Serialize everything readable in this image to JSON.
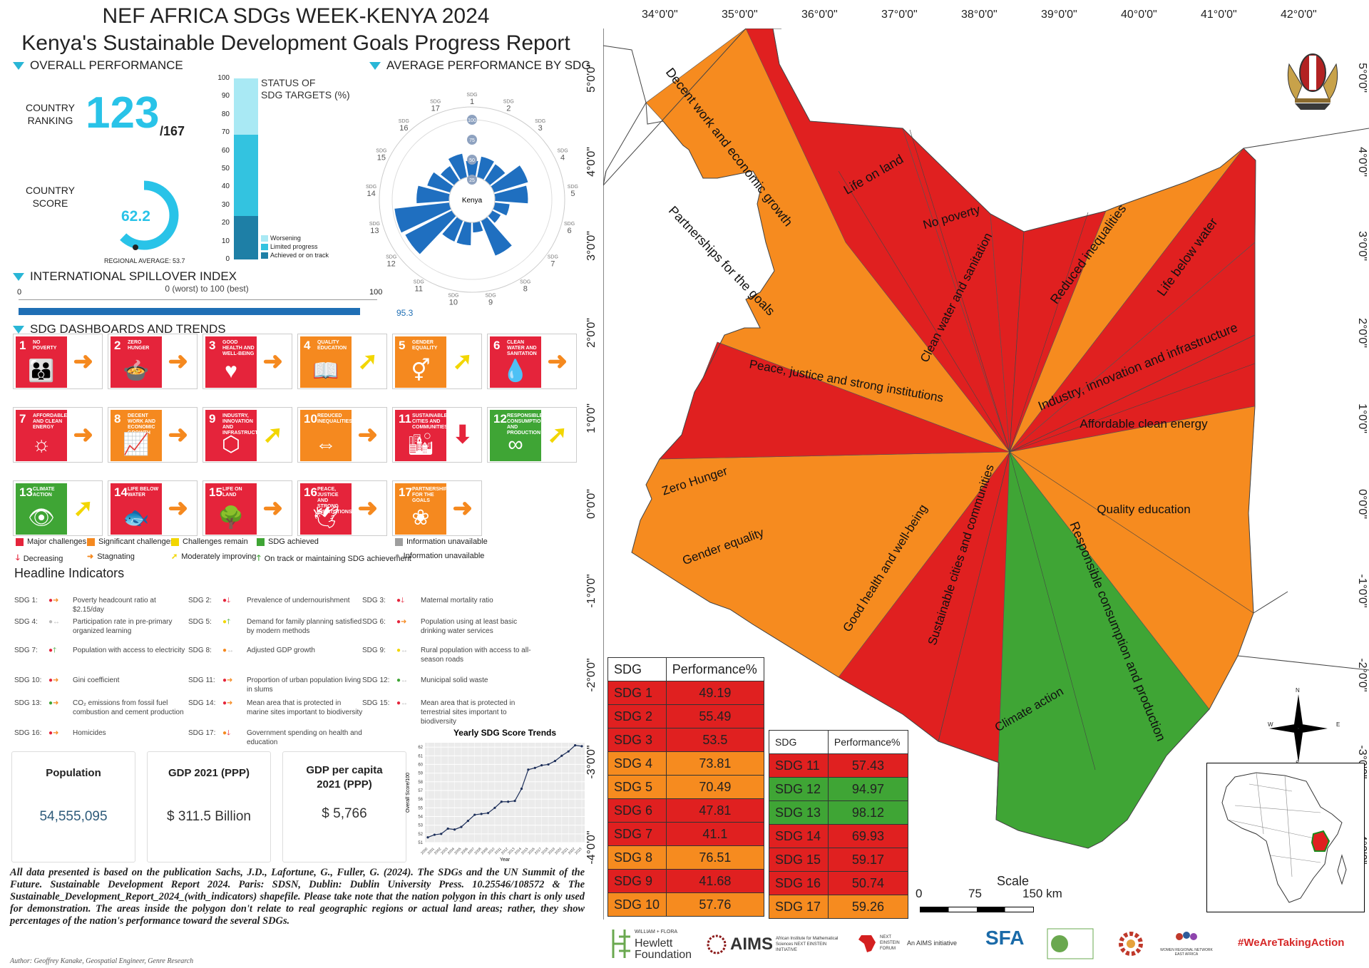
{
  "header": {
    "title1": "NEF AFRICA SDGs WEEK-KENYA 2024",
    "title2": "Kenya's Sustainable Development Goals Progress Report"
  },
  "overall": {
    "heading": "OVERALL PERFORMANCE",
    "ranking_label1": "COUNTRY",
    "ranking_label2": "RANKING",
    "rank": "123",
    "rank_total": "/167",
    "score_label1": "COUNTRY",
    "score_label2": "SCORE",
    "score": "62.2",
    "score_value": 62.2,
    "regional": "REGIONAL AVERAGE: 53.7"
  },
  "status": {
    "title1": "STATUS OF",
    "title2": "SDG TARGETS (%)",
    "ticks": [
      "0",
      "10",
      "20",
      "30",
      "40",
      "50",
      "60",
      "70",
      "80",
      "90",
      "100"
    ],
    "segments": [
      {
        "name": "Achieved or on track",
        "value": 24,
        "color": "#1e7fa6"
      },
      {
        "name": "Limited progress",
        "value": 45,
        "color": "#33c3e0"
      },
      {
        "name": "Worsening",
        "value": 31,
        "color": "#a9e9f4"
      }
    ],
    "legend": [
      "Worsening",
      "Limited progress",
      "Achieved or on track"
    ]
  },
  "radar": {
    "heading": "AVERAGE PERFORMANCE BY SDG",
    "center": "Kenya",
    "rings": [
      "25",
      "50",
      "75",
      "100"
    ],
    "sdg_label": "SDG",
    "values": [
      49.19,
      55.49,
      53.5,
      73.81,
      70.49,
      47.81,
      41.1,
      76.51,
      41.68,
      57.76,
      57.43,
      94.97,
      98.12,
      69.93,
      59.17,
      50.74,
      59.26
    ]
  },
  "spillover": {
    "heading": "INTERNATIONAL SPILLOVER INDEX",
    "min": "0",
    "max": "100",
    "scale_label": "0 (worst) to 100 (best)",
    "value": 95.3,
    "value_label": "95.3"
  },
  "dashboards": {
    "heading": "SDG DASHBOARDS AND TRENDS",
    "tiles": [
      {
        "num": "1",
        "name": "No poverty",
        "color": "#e5243b",
        "glyph": "👪",
        "arrow": "➜",
        "arrow_color": "#f5891f"
      },
      {
        "num": "2",
        "name": "Zero hunger",
        "color": "#e5243b",
        "glyph": "🍲",
        "arrow": "➜",
        "arrow_color": "#f5891f"
      },
      {
        "num": "3",
        "name": "Good health and well-being",
        "color": "#e5243b",
        "glyph": "♥",
        "arrow": "➜",
        "arrow_color": "#f5891f"
      },
      {
        "num": "4",
        "name": "Quality education",
        "color": "#f5891f",
        "glyph": "📖",
        "arrow": "➚",
        "arrow_color": "#f2d600"
      },
      {
        "num": "5",
        "name": "Gender equality",
        "color": "#f5891f",
        "glyph": "⚥",
        "arrow": "➚",
        "arrow_color": "#f2d600"
      },
      {
        "num": "6",
        "name": "Clean water and sanitation",
        "color": "#e5243b",
        "glyph": "💧",
        "arrow": "➜",
        "arrow_color": "#f5891f"
      },
      {
        "num": "7",
        "name": "Affordable and clean energy",
        "color": "#e5243b",
        "glyph": "☼",
        "arrow": "➜",
        "arrow_color": "#f5891f"
      },
      {
        "num": "8",
        "name": "Decent work and economic growth",
        "color": "#f5891f",
        "glyph": "📈",
        "arrow": "➜",
        "arrow_color": "#f5891f"
      },
      {
        "num": "9",
        "name": "Industry, innovation and infrastructure",
        "color": "#e5243b",
        "glyph": "⬡",
        "arrow": "➚",
        "arrow_color": "#f2d600"
      },
      {
        "num": "10",
        "name": "Reduced inequalities",
        "color": "#f5891f",
        "glyph": "⇔",
        "arrow": "➜",
        "arrow_color": "#f5891f"
      },
      {
        "num": "11",
        "name": "Sustainable cities and communities",
        "color": "#e5243b",
        "glyph": "🏙",
        "arrow": "⬇",
        "arrow_color": "#e5243b"
      },
      {
        "num": "12",
        "name": "Responsible consumption and production",
        "color": "#3fa535",
        "glyph": "∞",
        "arrow": "➚",
        "arrow_color": "#f2d600"
      },
      {
        "num": "13",
        "name": "Climate action",
        "color": "#3fa535",
        "glyph": "👁",
        "arrow": "➚",
        "arrow_color": "#f2d600"
      },
      {
        "num": "14",
        "name": "Life below water",
        "color": "#e5243b",
        "glyph": "🐟",
        "arrow": "➜",
        "arrow_color": "#f5891f"
      },
      {
        "num": "15",
        "name": "Life on land",
        "color": "#e5243b",
        "glyph": "🌳",
        "arrow": "➜",
        "arrow_color": "#f5891f"
      },
      {
        "num": "16",
        "name": "Peace, justice and strong institutions",
        "color": "#e5243b",
        "glyph": "🕊",
        "arrow": "➜",
        "arrow_color": "#f5891f"
      },
      {
        "num": "17",
        "name": "Partnerships for the goals",
        "color": "#f5891f",
        "glyph": "❀",
        "arrow": "➜",
        "arrow_color": "#f5891f"
      }
    ],
    "legend_row1": [
      {
        "t": "Major challenges",
        "c": "#e5243b"
      },
      {
        "t": "Significant challenges",
        "c": "#f5891f"
      },
      {
        "t": "Challenges remain",
        "c": "#f2d600"
      },
      {
        "t": "SDG achieved",
        "c": "#3fa535"
      },
      {
        "t": "Information unavailable",
        "c": "#9e9e9e"
      }
    ],
    "legend_row2": [
      {
        "t": "Decreasing",
        "s": "🡓",
        "c": "#e5243b"
      },
      {
        "t": "Stagnating",
        "s": "➜",
        "c": "#f5891f"
      },
      {
        "t": "Moderately improving",
        "s": "➚",
        "c": "#f2d600"
      },
      {
        "t": "On track or maintaining SDG achievement",
        "s": "🡑",
        "c": "#3fa535"
      },
      {
        "t": "Information unavailable",
        "s": "●",
        "c": "#9e9e9e"
      }
    ]
  },
  "headline": {
    "heading": "Headline Indicators",
    "items": [
      {
        "sdg": "SDG 1:",
        "dot": "#e5243b",
        "arr": "➜",
        "ac": "#f5891f",
        "text": "Poverty headcount ratio at $2.15/day"
      },
      {
        "sdg": "SDG 2:",
        "dot": "#e5243b",
        "arr": "🡓",
        "ac": "#e5243b",
        "text": "Prevalence of undernourishment"
      },
      {
        "sdg": "SDG 3:",
        "dot": "#e5243b",
        "arr": "🡓",
        "ac": "#e5243b",
        "text": "Maternal mortality ratio"
      },
      {
        "sdg": "SDG 4:",
        "dot": "#bbbbbb",
        "arr": "↔",
        "ac": "#bbbbbb",
        "text": "Participation rate in pre-primary organized learning"
      },
      {
        "sdg": "SDG 5:",
        "dot": "#f2d600",
        "arr": "🡑",
        "ac": "#3fa535",
        "text": "Demand for family planning satisfied by modern methods"
      },
      {
        "sdg": "SDG 6:",
        "dot": "#e5243b",
        "arr": "➜",
        "ac": "#f5891f",
        "text": "Population using at least basic drinking water services"
      },
      {
        "sdg": "SDG 7:",
        "dot": "#e5243b",
        "arr": "🡑",
        "ac": "#3fa535",
        "text": "Population with access to electricity"
      },
      {
        "sdg": "SDG 8:",
        "dot": "#f5891f",
        "arr": "↔",
        "ac": "#bbbbbb",
        "text": "Adjusted GDP growth"
      },
      {
        "sdg": "SDG 9:",
        "dot": "#f2d600",
        "arr": "↔",
        "ac": "#bbbbbb",
        "text": "Rural population with access to all-season roads"
      },
      {
        "sdg": "SDG 10:",
        "dot": "#e5243b",
        "arr": "➜",
        "ac": "#f5891f",
        "text": "Gini coefficient"
      },
      {
        "sdg": "SDG 11:",
        "dot": "#e5243b",
        "arr": "➜",
        "ac": "#f5891f",
        "text": "Proportion of urban population living in slums"
      },
      {
        "sdg": "SDG 12:",
        "dot": "#3fa535",
        "arr": "↔",
        "ac": "#bbbbbb",
        "text": "Municipal solid waste"
      },
      {
        "sdg": "SDG 13:",
        "dot": "#3fa535",
        "arr": "➜",
        "ac": "#f5891f",
        "text": "CO₂ emissions from fossil fuel combustion and cement production"
      },
      {
        "sdg": "SDG 14:",
        "dot": "#e5243b",
        "arr": "➜",
        "ac": "#f5891f",
        "text": "Mean area that is protected in marine sites important to biodiversity"
      },
      {
        "sdg": "SDG 15:",
        "dot": "#e5243b",
        "arr": "↔",
        "ac": "#bbbbbb",
        "text": "Mean area that is protected in terrestrial sites important to biodiversity"
      },
      {
        "sdg": "SDG 16:",
        "dot": "#e5243b",
        "arr": "➜",
        "ac": "#f5891f",
        "text": "Homicides"
      },
      {
        "sdg": "SDG 17:",
        "dot": "#f5891f",
        "arr": "🡓",
        "ac": "#e5243b",
        "text": "Government spending on health and education"
      }
    ]
  },
  "cards": [
    {
      "head": "Population",
      "value": "54,555,095",
      "color": "#2e5b7a"
    },
    {
      "head": "GDP 2021 (PPP)",
      "value": "$ 311.5 Billion",
      "color": "#333"
    },
    {
      "head": "GDP per capita 2021 (PPP)",
      "value": "$ 5,766",
      "color": "#333"
    }
  ],
  "chart_data": {
    "type": "line",
    "title": "Yearly SDG Score Trends",
    "xlabel": "Year",
    "ylabel": "Overall Score/100",
    "x": [
      2000,
      2001,
      2002,
      2003,
      2004,
      2005,
      2006,
      2007,
      2008,
      2009,
      2010,
      2011,
      2012,
      2013,
      2014,
      2015,
      2016,
      2017,
      2018,
      2019,
      2020,
      2021,
      2022,
      2023
    ],
    "values": [
      51.6,
      51.9,
      52.0,
      52.6,
      52.5,
      52.8,
      53.5,
      54.2,
      54.3,
      54.4,
      55.0,
      55.7,
      55.7,
      55.8,
      57.2,
      59.4,
      59.6,
      59.9,
      60.0,
      60.4,
      61.0,
      61.5,
      62.2,
      62.1
    ],
    "ylim": [
      51,
      62.5
    ],
    "yticks": [
      "51",
      "52",
      "53",
      "54",
      "55",
      "56",
      "57",
      "58",
      "59",
      "60",
      "61",
      "62"
    ],
    "grid": true
  },
  "footer": {
    "citation": "All data presented is based on the publication Sachs, J.D., Lafortune, G., Fuller, G. (2024). The SDGs and the UN Summit of the Future. Sustainable Development Report 2024. Paris: SDSN, Dublin: Dublin University Press. 10.25546/108572 & The Sustainable_Development_Report_2024_(with_indicators) shapefile. Please take note that the nation polygon in this chart is only used for demonstration. The areas inside the polygon don't relate to real geographic regions or actual land areas; rather, they show percentages of the nation's performance toward the several SDGs.",
    "author": "Author: Geoffrey Kanake, Geospatial Engineer, Genre Research"
  },
  "map": {
    "lon_labels": [
      "34°0'0\"",
      "35°0'0\"",
      "36°0'0\"",
      "37°0'0\"",
      "38°0'0\"",
      "39°0'0\"",
      "40°0'0\"",
      "41°0'0\"",
      "42°0'0\""
    ],
    "lat_labels": [
      "5°0'0\"",
      "4°0'0\"",
      "3°0'0\"",
      "2°0'0\"",
      "1°0'0\"",
      "0°0'0\"",
      "-1°0'0\"",
      "-2°0'0\"",
      "-3°0'0\"",
      "-4°0'0\""
    ],
    "labels": [
      "Decent work and economic growth",
      "Partnerships for the goals",
      "Life on land",
      "No poverty",
      "Clean water and sanitation",
      "Reduced inequalities",
      "Life below water",
      "Industry, innovation and infrastructure",
      "Affordable clean energy",
      "Peace, justice and strong institutions",
      "Zero Hunger",
      "Quality education",
      "Gender equality",
      "Good health and well-being",
      "Sustainable cities and communities",
      "Responsible consumption and production",
      "Climate action"
    ],
    "scale_title": "Scale",
    "scale_ticks": [
      "0",
      "75",
      "150 km"
    ],
    "compass": {
      "n": "N",
      "s": "S",
      "e": "E",
      "w": "W"
    }
  },
  "table1": {
    "h1": "SDG",
    "h2": "Performance%",
    "rows": [
      {
        "sdg": "SDG 1",
        "v": "49.19",
        "c": "#e02020"
      },
      {
        "sdg": "SDG 2",
        "v": "55.49",
        "c": "#e02020"
      },
      {
        "sdg": "SDG 3",
        "v": "53.5",
        "c": "#e02020"
      },
      {
        "sdg": "SDG 4",
        "v": "73.81",
        "c": "#f68b1f"
      },
      {
        "sdg": "SDG 5",
        "v": "70.49",
        "c": "#f68b1f"
      },
      {
        "sdg": "SDG 6",
        "v": "47.81",
        "c": "#e02020"
      },
      {
        "sdg": "SDG 7",
        "v": "41.1",
        "c": "#e02020"
      },
      {
        "sdg": "SDG 8",
        "v": "76.51",
        "c": "#f68b1f"
      },
      {
        "sdg": "SDG 9",
        "v": "41.68",
        "c": "#e02020"
      },
      {
        "sdg": "SDG 10",
        "v": "57.76",
        "c": "#f68b1f"
      }
    ]
  },
  "table2": {
    "h1": "SDG",
    "h2": "Performance%",
    "rows": [
      {
        "sdg": "SDG 11",
        "v": "57.43",
        "c": "#e02020"
      },
      {
        "sdg": "SDG 12",
        "v": "94.97",
        "c": "#3fa535"
      },
      {
        "sdg": "SDG 13",
        "v": "98.12",
        "c": "#3fa535"
      },
      {
        "sdg": "SDG 14",
        "v": "69.93",
        "c": "#e02020"
      },
      {
        "sdg": "SDG 15",
        "v": "59.17",
        "c": "#e02020"
      },
      {
        "sdg": "SDG 16",
        "v": "50.74",
        "c": "#e02020"
      },
      {
        "sdg": "SDG 17",
        "v": "59.26",
        "c": "#f68b1f"
      }
    ]
  },
  "logos": {
    "hewlett1": "WILLIAM + FLORA",
    "hewlett2": "Hewlett",
    "hewlett3": "Foundation",
    "aims": "AIMS",
    "aims_sub": "African Institute for Mathematical Sciences NEXT EINSTEIN INITIATIVE",
    "nef": "NEXT EINSTEIN FORUM",
    "nef_sub": "An AIMS initiative",
    "sfa": "SFA",
    "women": "WOMEN REGIONAL NETWORK EAST AFRICA",
    "hashtag": "#WeAreTakingAction"
  }
}
